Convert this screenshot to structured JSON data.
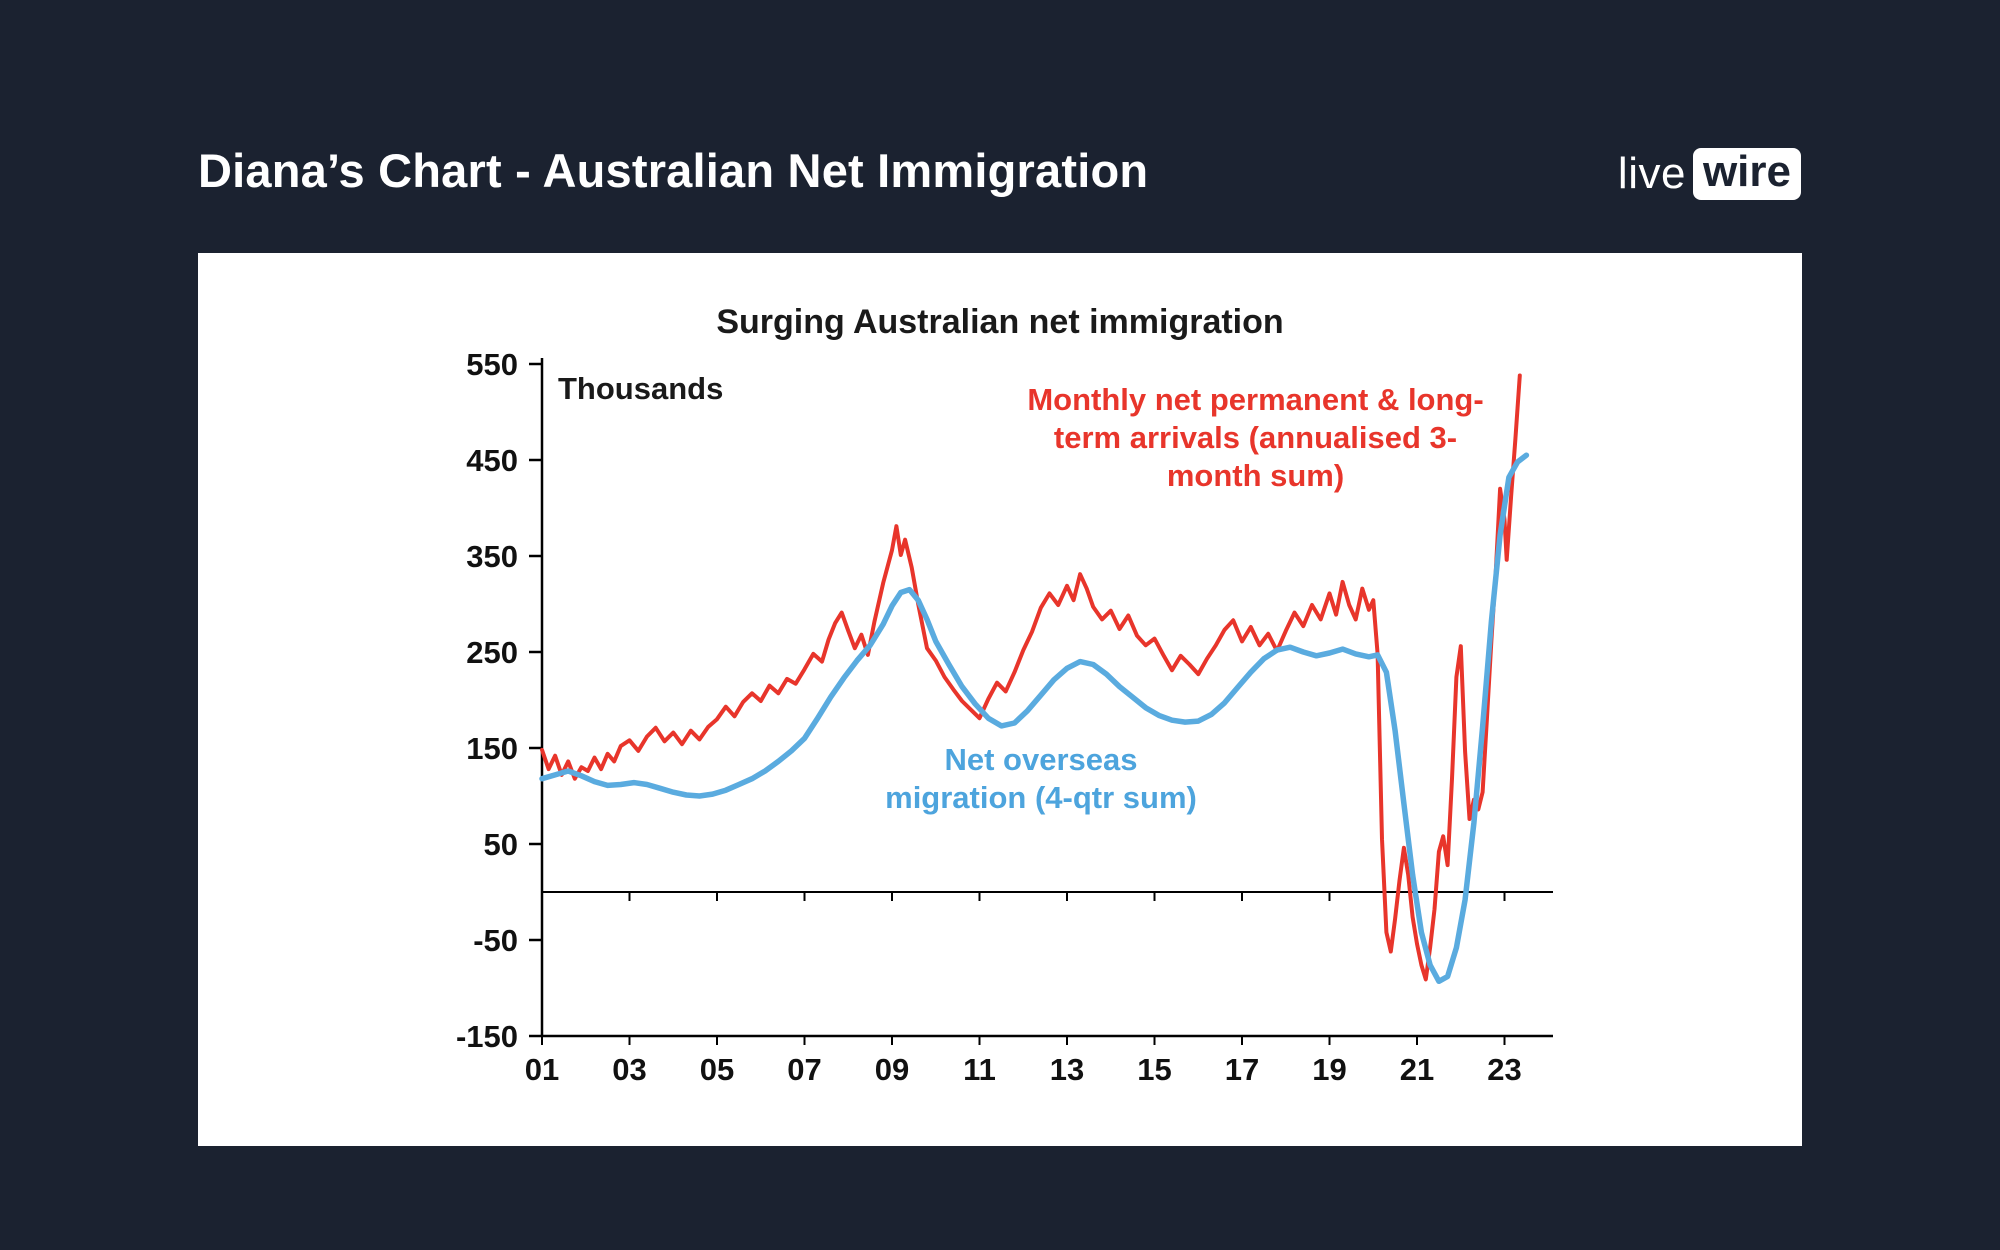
{
  "header": {
    "title": "Diana’s Chart - Australian Net Immigration",
    "logo": {
      "part1": "live",
      "part2": "wire"
    }
  },
  "colors": {
    "background": "#1b2230",
    "card": "#ffffff",
    "red_series": "#e8352b",
    "blue_series": "#5aabdf",
    "axis": "#000000"
  },
  "chart_data": {
    "type": "line",
    "title": "Surging Australian net immigration",
    "units_label": "Thousands",
    "xlabel": "",
    "ylabel": "Thousands",
    "xlim": [
      2001,
      2024
    ],
    "ylim": [
      -150,
      550
    ],
    "grid": false,
    "legend_position": "inline-annotations",
    "yticks": [
      550,
      450,
      350,
      250,
      150,
      50,
      -50,
      -150
    ],
    "xticks": [
      {
        "year": 2001,
        "label": "01"
      },
      {
        "year": 2003,
        "label": "03"
      },
      {
        "year": 2005,
        "label": "05"
      },
      {
        "year": 2007,
        "label": "07"
      },
      {
        "year": 2009,
        "label": "09"
      },
      {
        "year": 2011,
        "label": "11"
      },
      {
        "year": 2013,
        "label": "13"
      },
      {
        "year": 2015,
        "label": "15"
      },
      {
        "year": 2017,
        "label": "17"
      },
      {
        "year": 2019,
        "label": "19"
      },
      {
        "year": 2021,
        "label": "21"
      },
      {
        "year": 2023,
        "label": "23"
      }
    ],
    "series_labels": {
      "red": "Monthly net permanent & long-\nterm arrivals (annualised 3-\nmonth sum)",
      "blue": "Net overseas\nmigration (4-qtr sum)"
    },
    "series": [
      {
        "id": "monthly-arrivals",
        "name": "Monthly net permanent & long-term arrivals (annualised 3-month sum)",
        "color": "#e8352b",
        "stroke_width": 4,
        "points": [
          [
            2001.0,
            148
          ],
          [
            2001.15,
            128
          ],
          [
            2001.3,
            142
          ],
          [
            2001.45,
            122
          ],
          [
            2001.6,
            136
          ],
          [
            2001.75,
            118
          ],
          [
            2001.9,
            130
          ],
          [
            2002.05,
            126
          ],
          [
            2002.2,
            140
          ],
          [
            2002.35,
            128
          ],
          [
            2002.5,
            144
          ],
          [
            2002.65,
            136
          ],
          [
            2002.8,
            152
          ],
          [
            2003.0,
            158
          ],
          [
            2003.2,
            147
          ],
          [
            2003.4,
            162
          ],
          [
            2003.6,
            171
          ],
          [
            2003.8,
            157
          ],
          [
            2004.0,
            166
          ],
          [
            2004.2,
            154
          ],
          [
            2004.4,
            168
          ],
          [
            2004.6,
            159
          ],
          [
            2004.8,
            172
          ],
          [
            2005.0,
            180
          ],
          [
            2005.2,
            193
          ],
          [
            2005.4,
            183
          ],
          [
            2005.6,
            198
          ],
          [
            2005.8,
            207
          ],
          [
            2006.0,
            199
          ],
          [
            2006.2,
            215
          ],
          [
            2006.4,
            207
          ],
          [
            2006.6,
            222
          ],
          [
            2006.8,
            217
          ],
          [
            2007.0,
            232
          ],
          [
            2007.2,
            248
          ],
          [
            2007.4,
            240
          ],
          [
            2007.55,
            263
          ],
          [
            2007.7,
            280
          ],
          [
            2007.85,
            291
          ],
          [
            2008.0,
            272
          ],
          [
            2008.15,
            254
          ],
          [
            2008.3,
            268
          ],
          [
            2008.45,
            247
          ],
          [
            2008.6,
            282
          ],
          [
            2008.8,
            322
          ],
          [
            2009.0,
            356
          ],
          [
            2009.1,
            381
          ],
          [
            2009.2,
            351
          ],
          [
            2009.3,
            367
          ],
          [
            2009.45,
            338
          ],
          [
            2009.6,
            300
          ],
          [
            2009.8,
            254
          ],
          [
            2010.0,
            241
          ],
          [
            2010.2,
            224
          ],
          [
            2010.4,
            211
          ],
          [
            2010.6,
            199
          ],
          [
            2010.8,
            190
          ],
          [
            2011.0,
            181
          ],
          [
            2011.2,
            201
          ],
          [
            2011.4,
            218
          ],
          [
            2011.6,
            209
          ],
          [
            2011.8,
            229
          ],
          [
            2012.0,
            252
          ],
          [
            2012.2,
            271
          ],
          [
            2012.4,
            296
          ],
          [
            2012.6,
            311
          ],
          [
            2012.8,
            299
          ],
          [
            2013.0,
            319
          ],
          [
            2013.15,
            304
          ],
          [
            2013.3,
            331
          ],
          [
            2013.45,
            316
          ],
          [
            2013.6,
            297
          ],
          [
            2013.8,
            284
          ],
          [
            2014.0,
            293
          ],
          [
            2014.2,
            274
          ],
          [
            2014.4,
            288
          ],
          [
            2014.6,
            267
          ],
          [
            2014.8,
            257
          ],
          [
            2015.0,
            264
          ],
          [
            2015.2,
            247
          ],
          [
            2015.4,
            231
          ],
          [
            2015.6,
            246
          ],
          [
            2015.8,
            237
          ],
          [
            2016.0,
            227
          ],
          [
            2016.2,
            243
          ],
          [
            2016.4,
            257
          ],
          [
            2016.6,
            273
          ],
          [
            2016.8,
            283
          ],
          [
            2017.0,
            261
          ],
          [
            2017.2,
            276
          ],
          [
            2017.4,
            257
          ],
          [
            2017.6,
            269
          ],
          [
            2017.8,
            251
          ],
          [
            2018.0,
            272
          ],
          [
            2018.2,
            291
          ],
          [
            2018.4,
            277
          ],
          [
            2018.6,
            299
          ],
          [
            2018.8,
            284
          ],
          [
            2019.0,
            311
          ],
          [
            2019.15,
            289
          ],
          [
            2019.3,
            323
          ],
          [
            2019.45,
            299
          ],
          [
            2019.6,
            284
          ],
          [
            2019.75,
            316
          ],
          [
            2019.9,
            294
          ],
          [
            2020.0,
            304
          ],
          [
            2020.1,
            248
          ],
          [
            2020.2,
            55
          ],
          [
            2020.3,
            -42
          ],
          [
            2020.4,
            -62
          ],
          [
            2020.5,
            -28
          ],
          [
            2020.6,
            12
          ],
          [
            2020.7,
            46
          ],
          [
            2020.8,
            18
          ],
          [
            2020.9,
            -26
          ],
          [
            2021.0,
            -54
          ],
          [
            2021.1,
            -76
          ],
          [
            2021.2,
            -91
          ],
          [
            2021.3,
            -58
          ],
          [
            2021.4,
            -18
          ],
          [
            2021.5,
            42
          ],
          [
            2021.6,
            58
          ],
          [
            2021.7,
            28
          ],
          [
            2021.8,
            118
          ],
          [
            2021.9,
            224
          ],
          [
            2022.0,
            256
          ],
          [
            2022.1,
            146
          ],
          [
            2022.2,
            76
          ],
          [
            2022.3,
            96
          ],
          [
            2022.4,
            86
          ],
          [
            2022.5,
            104
          ],
          [
            2022.6,
            182
          ],
          [
            2022.7,
            262
          ],
          [
            2022.8,
            332
          ],
          [
            2022.9,
            420
          ],
          [
            2023.0,
            388
          ],
          [
            2023.05,
            346
          ],
          [
            2023.15,
            412
          ],
          [
            2023.25,
            472
          ],
          [
            2023.35,
            538
          ]
        ]
      },
      {
        "id": "net-overseas-migration",
        "name": "Net overseas migration (4-qtr sum)",
        "color": "#5aabdf",
        "stroke_width": 5.5,
        "points": [
          [
            2001.0,
            118
          ],
          [
            2001.3,
            122
          ],
          [
            2001.6,
            126
          ],
          [
            2001.9,
            121
          ],
          [
            2002.2,
            115
          ],
          [
            2002.5,
            111
          ],
          [
            2002.8,
            112
          ],
          [
            2003.1,
            114
          ],
          [
            2003.4,
            112
          ],
          [
            2003.7,
            108
          ],
          [
            2004.0,
            104
          ],
          [
            2004.3,
            101
          ],
          [
            2004.6,
            100
          ],
          [
            2004.9,
            102
          ],
          [
            2005.2,
            106
          ],
          [
            2005.5,
            112
          ],
          [
            2005.8,
            118
          ],
          [
            2006.1,
            126
          ],
          [
            2006.4,
            136
          ],
          [
            2006.7,
            147
          ],
          [
            2007.0,
            160
          ],
          [
            2007.3,
            181
          ],
          [
            2007.6,
            203
          ],
          [
            2007.9,
            223
          ],
          [
            2008.2,
            241
          ],
          [
            2008.5,
            257
          ],
          [
            2008.8,
            279
          ],
          [
            2009.0,
            298
          ],
          [
            2009.2,
            312
          ],
          [
            2009.4,
            315
          ],
          [
            2009.6,
            304
          ],
          [
            2009.8,
            284
          ],
          [
            2010.0,
            261
          ],
          [
            2010.3,
            237
          ],
          [
            2010.6,
            214
          ],
          [
            2010.9,
            196
          ],
          [
            2011.2,
            181
          ],
          [
            2011.5,
            173
          ],
          [
            2011.8,
            176
          ],
          [
            2012.1,
            189
          ],
          [
            2012.4,
            205
          ],
          [
            2012.7,
            221
          ],
          [
            2013.0,
            233
          ],
          [
            2013.3,
            240
          ],
          [
            2013.6,
            237
          ],
          [
            2013.9,
            227
          ],
          [
            2014.2,
            214
          ],
          [
            2014.5,
            203
          ],
          [
            2014.8,
            192
          ],
          [
            2015.1,
            184
          ],
          [
            2015.4,
            179
          ],
          [
            2015.7,
            177
          ],
          [
            2016.0,
            178
          ],
          [
            2016.3,
            185
          ],
          [
            2016.6,
            197
          ],
          [
            2016.9,
            213
          ],
          [
            2017.2,
            229
          ],
          [
            2017.5,
            243
          ],
          [
            2017.8,
            252
          ],
          [
            2018.1,
            255
          ],
          [
            2018.4,
            250
          ],
          [
            2018.7,
            246
          ],
          [
            2019.0,
            249
          ],
          [
            2019.3,
            253
          ],
          [
            2019.6,
            248
          ],
          [
            2019.9,
            245
          ],
          [
            2020.1,
            247
          ],
          [
            2020.3,
            229
          ],
          [
            2020.5,
            168
          ],
          [
            2020.7,
            92
          ],
          [
            2020.9,
            18
          ],
          [
            2021.1,
            -42
          ],
          [
            2021.3,
            -76
          ],
          [
            2021.5,
            -93
          ],
          [
            2021.7,
            -88
          ],
          [
            2021.9,
            -58
          ],
          [
            2022.1,
            -8
          ],
          [
            2022.3,
            72
          ],
          [
            2022.5,
            172
          ],
          [
            2022.7,
            282
          ],
          [
            2022.9,
            372
          ],
          [
            2023.1,
            432
          ],
          [
            2023.3,
            448
          ],
          [
            2023.5,
            455
          ]
        ]
      }
    ]
  }
}
